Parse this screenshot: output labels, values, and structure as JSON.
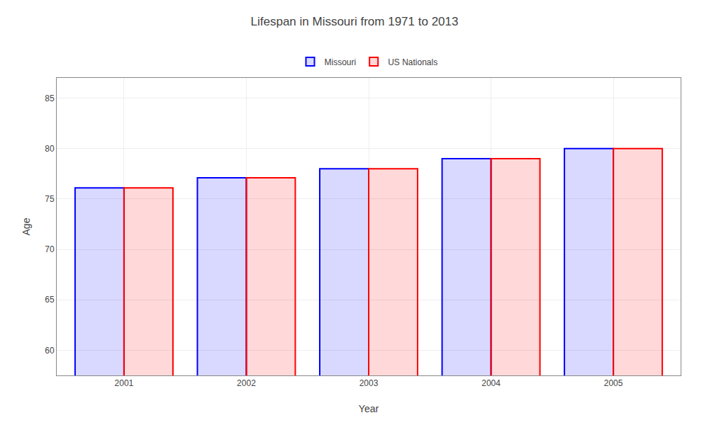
{
  "chart_data": {
    "type": "bar",
    "title": "Lifespan in Missouri from 1971 to 2013",
    "x_label": "Year",
    "y_label": "Age",
    "categories": [
      "2001",
      "2002",
      "2003",
      "2004",
      "2005"
    ],
    "series": [
      {
        "name": "Missouri",
        "color": "#0000ff",
        "values": [
          76.1,
          77.1,
          78.0,
          79.0,
          80.0
        ]
      },
      {
        "name": "US Nationals",
        "color": "#ff0000",
        "values": [
          76.1,
          77.1,
          78.0,
          79.0,
          80.0
        ]
      }
    ],
    "ylim": [
      57.5,
      87
    ],
    "yticks": [
      60,
      65,
      70,
      75,
      80,
      85
    ],
    "grid": true,
    "legend": "top"
  }
}
